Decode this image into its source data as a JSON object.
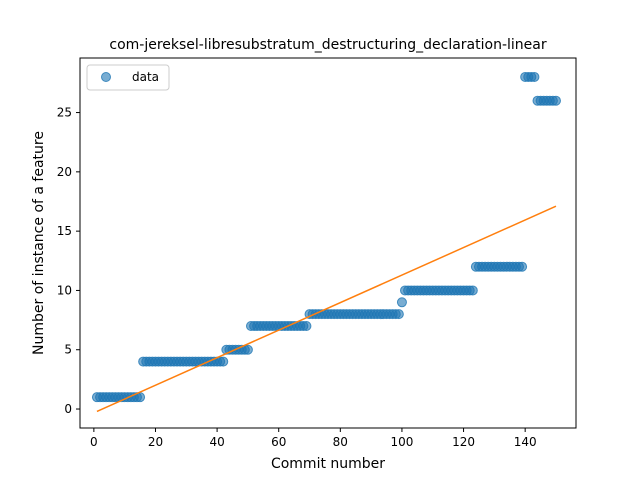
{
  "chart_data": {
    "type": "scatter",
    "title": "com-jereksel-libresubstratum_destructuring_declaration-linear",
    "xlabel": "Commit number",
    "ylabel": "Number of instance of a feature",
    "xlim": [
      -4.5,
      156.5
    ],
    "ylim": [
      -1.6,
      29.6
    ],
    "xticks": [
      0,
      20,
      40,
      60,
      80,
      100,
      120,
      140
    ],
    "yticks": [
      0,
      5,
      10,
      15,
      20,
      25
    ],
    "grid": false,
    "legend": {
      "placement": "upper-left",
      "entries": [
        "data"
      ]
    },
    "colors": {
      "points": "#1f77b4",
      "fit": "#ff7f0e"
    },
    "steps": [
      {
        "x_start": 1,
        "x_end": 15,
        "y": 1
      },
      {
        "x_start": 16,
        "x_end": 42,
        "y": 4
      },
      {
        "x_start": 43,
        "x_end": 50,
        "y": 5
      },
      {
        "x_start": 51,
        "x_end": 69,
        "y": 7
      },
      {
        "x_start": 70,
        "x_end": 99,
        "y": 8
      },
      {
        "x_start": 100,
        "x_end": 100,
        "y": 9
      },
      {
        "x_start": 101,
        "x_end": 123,
        "y": 10
      },
      {
        "x_start": 124,
        "x_end": 139,
        "y": 12
      },
      {
        "x_start": 140,
        "x_end": 143,
        "y": 28
      },
      {
        "x_start": 144,
        "x_end": 150,
        "y": 26
      }
    ],
    "series": [
      {
        "name": "data",
        "kind": "points"
      },
      {
        "kind": "line",
        "x": [
          1,
          150
        ],
        "y": [
          -0.2,
          17.1
        ]
      }
    ]
  }
}
